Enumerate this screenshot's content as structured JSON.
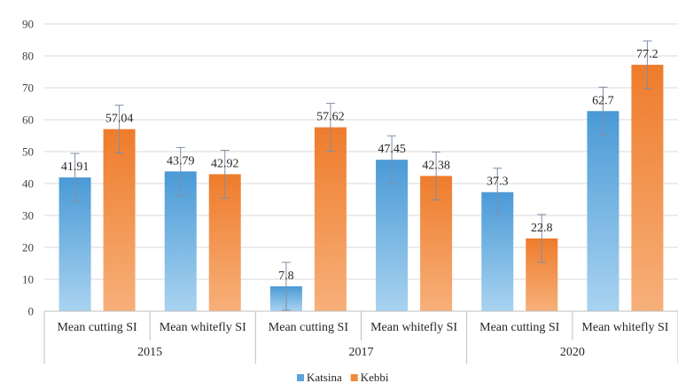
{
  "chart_data": {
    "type": "bar",
    "title": "",
    "xlabel": "",
    "ylabel": "",
    "ylim": [
      0,
      90
    ],
    "yticks": [
      0,
      10,
      20,
      30,
      40,
      50,
      60,
      70,
      80,
      90
    ],
    "grid": true,
    "legend_position": "bottom",
    "groups": [
      {
        "label": "2015",
        "categories": [
          "Mean cutting SI",
          "Mean whitefly SI"
        ]
      },
      {
        "label": "2017",
        "categories": [
          "Mean cutting SI",
          "Mean whitefly SI"
        ]
      },
      {
        "label": "2020",
        "categories": [
          "Mean cutting SI",
          "Mean whitefly SI"
        ]
      }
    ],
    "series": [
      {
        "name": "Katsina",
        "color": "#5ba3d9",
        "values": [
          41.91,
          43.79,
          7.8,
          47.45,
          37.3,
          62.7
        ],
        "labels": [
          "41.91",
          "43.79",
          "7.8",
          "47.45",
          "37.3",
          "62.7"
        ],
        "error": [
          7.5,
          7.5,
          7.5,
          7.5,
          7.5,
          7.5
        ]
      },
      {
        "name": "Kebbi",
        "color": "#f08a3c",
        "values": [
          57.04,
          42.92,
          57.62,
          42.38,
          22.8,
          77.2
        ],
        "labels": [
          "57.04",
          "42.92",
          "57.62",
          "42.38",
          "22.8",
          "77.2"
        ],
        "error": [
          7.5,
          7.5,
          7.5,
          7.5,
          7.5,
          7.5
        ]
      }
    ]
  }
}
